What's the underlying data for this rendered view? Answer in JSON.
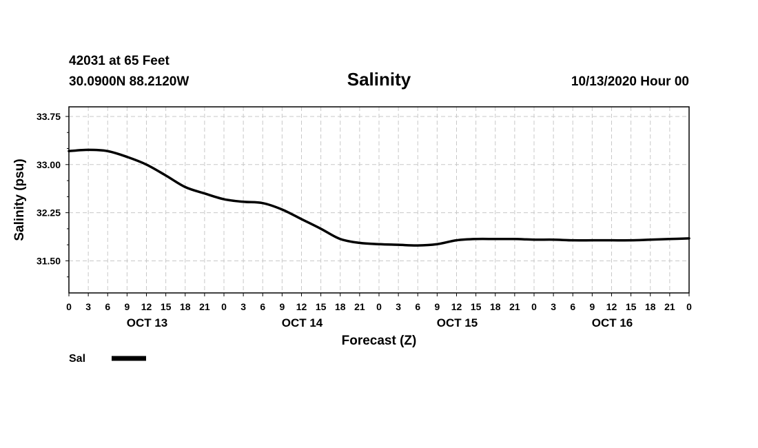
{
  "chart_data": {
    "type": "line",
    "title": "Salinity",
    "station": "42031 at 65 Feet",
    "location": "30.0900N 88.2120W",
    "run": "10/13/2020 Hour 00",
    "xlabel": "Forecast (Z)",
    "ylabel": "Salinity (psu)",
    "ylim": [
      31.0,
      33.9
    ],
    "yticks": [
      31.5,
      32.25,
      33.0,
      33.75
    ],
    "ytick_labels": [
      "31.50",
      "32.25",
      "33.00",
      "33.75"
    ],
    "x_hours": [
      0,
      3,
      6,
      9,
      12,
      15,
      18,
      21,
      24,
      27,
      30,
      33,
      36,
      39,
      42,
      45,
      48,
      51,
      54,
      57,
      60,
      63,
      66,
      69,
      72,
      75,
      78,
      81,
      84,
      87,
      90,
      93,
      96
    ],
    "x_tick_labels": [
      "0",
      "3",
      "6",
      "9",
      "12",
      "15",
      "18",
      "21",
      "0",
      "3",
      "6",
      "9",
      "12",
      "15",
      "18",
      "21",
      "0",
      "3",
      "6",
      "9",
      "12",
      "15",
      "18",
      "21",
      "0",
      "3",
      "6",
      "9",
      "12",
      "15",
      "18",
      "21",
      "0"
    ],
    "days": [
      {
        "label": "OCT 13",
        "center_hour": 12
      },
      {
        "label": "OCT 14",
        "center_hour": 36
      },
      {
        "label": "OCT 15",
        "center_hour": 60
      },
      {
        "label": "OCT 16",
        "center_hour": 84
      }
    ],
    "series": [
      {
        "name": "Sal",
        "color": "#000000",
        "x": [
          0,
          3,
          6,
          9,
          12,
          15,
          18,
          21,
          24,
          27,
          30,
          33,
          36,
          39,
          42,
          45,
          48,
          51,
          54,
          57,
          60,
          63,
          66,
          69,
          72,
          75,
          78,
          81,
          84,
          87,
          90,
          93,
          96
        ],
        "values": [
          33.21,
          33.23,
          33.21,
          33.12,
          33.0,
          32.83,
          32.65,
          32.55,
          32.46,
          32.42,
          32.4,
          32.3,
          32.15,
          32.0,
          31.84,
          31.78,
          31.76,
          31.75,
          31.74,
          31.76,
          31.82,
          31.84,
          31.84,
          31.84,
          31.83,
          31.83,
          31.82,
          31.82,
          31.82,
          31.82,
          31.83,
          31.84,
          31.85
        ]
      }
    ],
    "legend": {
      "label": "Sal",
      "placement": "bottom-left"
    },
    "grid": true
  }
}
